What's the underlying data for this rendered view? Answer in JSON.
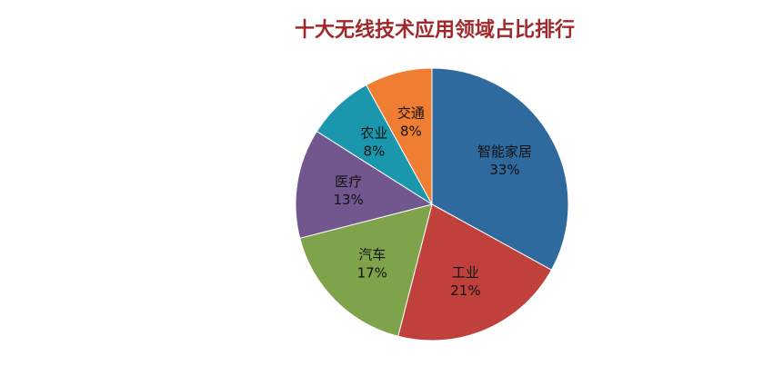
{
  "chart_data": {
    "type": "pie",
    "title": "十大无线技术应用领域占比排行",
    "categories": [
      "智能家居",
      "工业",
      "汽车",
      "医疗",
      "农业",
      "交通"
    ],
    "values": [
      33,
      21,
      17,
      13,
      8,
      8
    ],
    "value_labels": [
      "33%",
      "21%",
      "17%",
      "13%",
      "8%",
      "8%"
    ],
    "colors": [
      "#2e6a9e",
      "#c0403c",
      "#7fa34a",
      "#72578f",
      "#1a97ad",
      "#ef7d32"
    ]
  }
}
